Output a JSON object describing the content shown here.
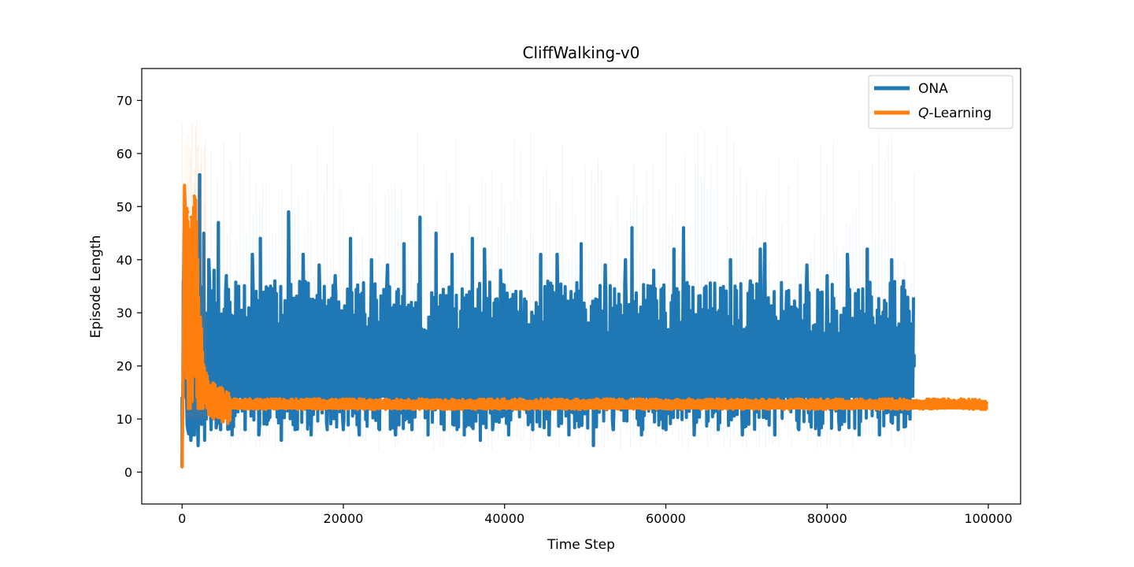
{
  "chart_data": {
    "type": "line",
    "title": "CliffWalking-v0",
    "xlabel": "Time Step",
    "ylabel": "Episode Length",
    "xlim": [
      -5000,
      104000
    ],
    "ylim": [
      -6,
      76
    ],
    "xticks": [
      0,
      20000,
      40000,
      60000,
      80000,
      100000
    ],
    "yticks": [
      0,
      10,
      20,
      30,
      40,
      50,
      60,
      70
    ],
    "grid": false,
    "legend_position": "top-right",
    "series": [
      {
        "name": "ONA",
        "legend_label": "ONA",
        "color": "#1f77b4",
        "x_range": [
          0,
          90800
        ],
        "points": [
          [
            0,
            1
          ],
          [
            150,
            36
          ],
          [
            300,
            46
          ],
          [
            500,
            16
          ],
          [
            700,
            8
          ],
          [
            900,
            44
          ],
          [
            1100,
            6
          ],
          [
            1300,
            40
          ],
          [
            1500,
            7
          ],
          [
            1800,
            38
          ],
          [
            2000,
            5
          ],
          [
            2200,
            56
          ],
          [
            2400,
            9
          ],
          [
            2700,
            45
          ],
          [
            3000,
            10
          ],
          [
            3300,
            40
          ],
          [
            3600,
            8
          ],
          [
            4000,
            38
          ],
          [
            4300,
            9
          ],
          [
            4500,
            47
          ],
          [
            4800,
            8
          ],
          [
            5500,
            37
          ],
          [
            6200,
            7
          ],
          [
            7000,
            35
          ],
          [
            7800,
            8
          ],
          [
            8700,
            41
          ],
          [
            9500,
            7
          ],
          [
            9700,
            44
          ],
          [
            10500,
            9
          ],
          [
            11500,
            36
          ],
          [
            12300,
            6
          ],
          [
            13200,
            49
          ],
          [
            14000,
            8
          ],
          [
            15000,
            41
          ],
          [
            16000,
            7
          ],
          [
            17000,
            39
          ],
          [
            18000,
            8
          ],
          [
            19000,
            37
          ],
          [
            20000,
            8
          ],
          [
            20900,
            44
          ],
          [
            22000,
            7
          ],
          [
            23500,
            40
          ],
          [
            24500,
            8
          ],
          [
            25500,
            39
          ],
          [
            26500,
            7
          ],
          [
            27500,
            43
          ],
          [
            28500,
            8
          ],
          [
            29500,
            48
          ],
          [
            30500,
            7
          ],
          [
            31500,
            45
          ],
          [
            32500,
            8
          ],
          [
            33500,
            41
          ],
          [
            35000,
            7
          ],
          [
            36000,
            44
          ],
          [
            37000,
            6
          ],
          [
            37500,
            42
          ],
          [
            38500,
            8
          ],
          [
            39500,
            38
          ],
          [
            40500,
            7
          ],
          [
            42000,
            34
          ],
          [
            43500,
            8
          ],
          [
            44500,
            41
          ],
          [
            45500,
            7
          ],
          [
            46500,
            41
          ],
          [
            48000,
            7
          ],
          [
            49500,
            43
          ],
          [
            51000,
            5
          ],
          [
            52500,
            39
          ],
          [
            53500,
            8
          ],
          [
            55000,
            40
          ],
          [
            55800,
            46
          ],
          [
            57000,
            7
          ],
          [
            58500,
            38
          ],
          [
            60000,
            8
          ],
          [
            61000,
            42
          ],
          [
            62200,
            46
          ],
          [
            63500,
            7
          ],
          [
            65000,
            35
          ],
          [
            66500,
            8
          ],
          [
            68000,
            40
          ],
          [
            69500,
            7
          ],
          [
            70500,
            36
          ],
          [
            71700,
            42
          ],
          [
            72300,
            43
          ],
          [
            73500,
            7
          ],
          [
            75000,
            34
          ],
          [
            76500,
            8
          ],
          [
            77500,
            39
          ],
          [
            79000,
            7
          ],
          [
            80000,
            37
          ],
          [
            81500,
            8
          ],
          [
            82500,
            41
          ],
          [
            84000,
            7
          ],
          [
            85000,
            42
          ],
          [
            86500,
            7
          ],
          [
            88000,
            40
          ],
          [
            88800,
            8
          ],
          [
            89500,
            36
          ],
          [
            90300,
            10
          ],
          [
            90800,
            22
          ]
        ],
        "envelope_upper": 30,
        "envelope_lower": 12
      },
      {
        "name": "Q-Learning",
        "legend_label_italic": "Q",
        "legend_label_rest": "-Learning",
        "color": "#ff7f0e",
        "x_range": [
          0,
          99800
        ],
        "points": [
          [
            0,
            1
          ],
          [
            150,
            20
          ],
          [
            300,
            54
          ],
          [
            500,
            45
          ],
          [
            700,
            49
          ],
          [
            900,
            13
          ],
          [
            1100,
            48
          ],
          [
            1300,
            42
          ],
          [
            1500,
            52
          ],
          [
            1800,
            47
          ],
          [
            2000,
            30
          ],
          [
            2300,
            26
          ],
          [
            2600,
            20
          ],
          [
            3000,
            17
          ],
          [
            3500,
            15
          ],
          [
            4000,
            15
          ],
          [
            5000,
            14
          ],
          [
            6000,
            13.5
          ],
          [
            8000,
            13
          ],
          [
            10000,
            13
          ],
          [
            20000,
            13
          ],
          [
            30000,
            13
          ],
          [
            40000,
            13
          ],
          [
            50000,
            13
          ],
          [
            60000,
            13
          ],
          [
            70000,
            13
          ],
          [
            80000,
            13
          ],
          [
            90000,
            13
          ],
          [
            95000,
            13
          ],
          [
            97500,
            12.5
          ],
          [
            99800,
            13
          ]
        ],
        "band_upper": 13.8,
        "band_lower": 11.2
      }
    ]
  }
}
